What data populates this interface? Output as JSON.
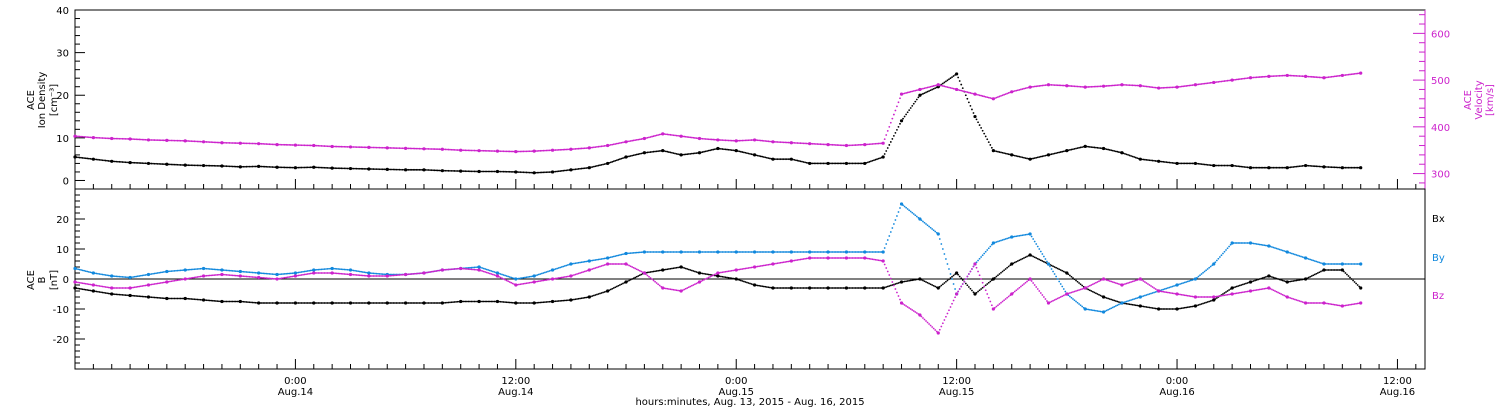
{
  "colors": {
    "black": "#000000",
    "magenta": "#cc22cc",
    "blue": "#1188dd"
  },
  "bottom_title": "hours:minutes, Aug. 13, 2015 - Aug. 16, 2015",
  "x_ticks": [
    {
      "hour": 12,
      "time": "0:00",
      "date": "Aug.14"
    },
    {
      "hour": 24,
      "time": "12:00",
      "date": "Aug.14"
    },
    {
      "hour": 36,
      "time": "0:00",
      "date": "Aug.15"
    },
    {
      "hour": 48,
      "time": "12:00",
      "date": "Aug.15"
    },
    {
      "hour": 60,
      "time": "0:00",
      "date": "Aug.16"
    },
    {
      "hour": 72,
      "time": "12:00",
      "date": "Aug.16"
    }
  ],
  "chart_data": [
    {
      "type": "scatter",
      "panel": "top",
      "ylabel_lines": [
        "ACE",
        "Ion Density",
        "[cm⁻³]"
      ],
      "ylim": [
        -2,
        40
      ],
      "y_ticks": [
        0,
        10,
        20,
        30,
        40
      ],
      "y2label_lines": [
        "ACE",
        "Velocity",
        "[km/s]"
      ],
      "y2lim": [
        267,
        650
      ],
      "y2_ticks": [
        300,
        400,
        500,
        600
      ],
      "xlim": [
        0,
        73.5
      ],
      "grid": false,
      "series": [
        {
          "color": "#000000",
          "x": [
            0,
            1,
            2,
            3,
            4,
            5,
            6,
            7,
            8,
            9,
            10,
            11,
            12,
            13,
            14,
            15,
            16,
            17,
            18,
            19,
            20,
            21,
            22,
            23,
            24,
            25,
            26,
            27,
            28,
            29,
            30,
            31,
            32,
            33,
            34,
            35,
            36,
            37,
            38,
            39,
            40,
            41,
            42,
            43,
            44,
            45,
            46,
            47,
            48,
            49,
            50,
            51,
            52,
            53,
            54,
            55,
            56,
            57,
            58,
            59,
            60,
            61,
            62,
            63,
            64,
            65,
            66,
            67,
            68,
            69,
            70
          ],
          "y": [
            5.5,
            5,
            4.5,
            4.2,
            4,
            3.8,
            3.6,
            3.5,
            3.4,
            3.2,
            3.3,
            3.1,
            3,
            3.1,
            2.9,
            2.8,
            2.7,
            2.6,
            2.5,
            2.5,
            2.3,
            2.2,
            2.1,
            2.1,
            2,
            1.8,
            2,
            2.5,
            3,
            4,
            5.5,
            6.5,
            7,
            6,
            6.5,
            7.5,
            7,
            6,
            5,
            5,
            4,
            4,
            4,
            4,
            5.5,
            14,
            20,
            22,
            25,
            15,
            7,
            6,
            5,
            6,
            7,
            8,
            7.5,
            6.5,
            5,
            4.5,
            4,
            4,
            3.5,
            3.5,
            3,
            3,
            3,
            3.5,
            3.2,
            3,
            3
          ]
        },
        {
          "color": "#cc22cc",
          "axis": "y2",
          "x": [
            0,
            1,
            2,
            3,
            4,
            5,
            6,
            7,
            8,
            9,
            10,
            11,
            12,
            13,
            14,
            15,
            16,
            17,
            18,
            19,
            20,
            21,
            22,
            23,
            24,
            25,
            26,
            27,
            28,
            29,
            30,
            31,
            32,
            33,
            34,
            35,
            36,
            37,
            38,
            39,
            40,
            41,
            42,
            43,
            44,
            45,
            46,
            47,
            48,
            49,
            50,
            51,
            52,
            53,
            54,
            55,
            56,
            57,
            58,
            59,
            60,
            61,
            62,
            63,
            64,
            65,
            66,
            67,
            68,
            69,
            70
          ],
          "y": [
            380,
            377,
            375,
            374,
            372,
            371,
            370,
            368,
            366,
            365,
            364,
            362,
            361,
            360,
            358,
            357,
            356,
            355,
            354,
            353,
            352,
            350,
            349,
            348,
            347,
            348,
            350,
            352,
            355,
            360,
            368,
            375,
            385,
            380,
            375,
            372,
            370,
            372,
            368,
            366,
            364,
            362,
            360,
            362,
            365,
            470,
            480,
            490,
            480,
            470,
            460,
            475,
            485,
            490,
            488,
            485,
            487,
            490,
            488,
            483,
            485,
            490,
            495,
            500,
            505,
            508,
            510,
            508,
            505,
            510,
            515
          ]
        }
      ]
    },
    {
      "type": "scatter",
      "panel": "bottom",
      "ylabel_lines": [
        "ACE",
        "B",
        "[nT]"
      ],
      "ylim": [
        -30,
        30
      ],
      "y_ticks": [
        -20,
        -10,
        0,
        10,
        20
      ],
      "xlim": [
        0,
        73.5
      ],
      "zero_line": true,
      "grid": false,
      "legend_position": "right",
      "series": [
        {
          "name": "Bx",
          "color": "#000000",
          "x": [
            0,
            1,
            2,
            3,
            4,
            5,
            6,
            7,
            8,
            9,
            10,
            11,
            12,
            13,
            14,
            15,
            16,
            17,
            18,
            19,
            20,
            21,
            22,
            23,
            24,
            25,
            26,
            27,
            28,
            29,
            30,
            31,
            32,
            33,
            34,
            35,
            36,
            37,
            38,
            39,
            40,
            41,
            42,
            43,
            44,
            45,
            46,
            47,
            48,
            49,
            50,
            51,
            52,
            53,
            54,
            55,
            56,
            57,
            58,
            59,
            60,
            61,
            62,
            63,
            64,
            65,
            66,
            67,
            68,
            69,
            70
          ],
          "y": [
            -3,
            -4,
            -5,
            -5.5,
            -6,
            -6.5,
            -6.5,
            -7,
            -7.5,
            -7.5,
            -8,
            -8,
            -8,
            -8,
            -8,
            -8,
            -8,
            -8,
            -8,
            -8,
            -8,
            -7.5,
            -7.5,
            -7.5,
            -8,
            -8,
            -7.5,
            -7,
            -6,
            -4,
            -1,
            2,
            3,
            4,
            2,
            1,
            0,
            -2,
            -3,
            -3,
            -3,
            -3,
            -3,
            -3,
            -3,
            -1,
            0,
            -3,
            2,
            -5,
            0,
            5,
            8,
            5,
            2,
            -3,
            -6,
            -8,
            -9,
            -10,
            -10,
            -9,
            -7,
            -3,
            -1,
            1,
            -1,
            0,
            3,
            3,
            -3
          ]
        },
        {
          "name": "By",
          "color": "#1188dd",
          "x": [
            0,
            1,
            2,
            3,
            4,
            5,
            6,
            7,
            8,
            9,
            10,
            11,
            12,
            13,
            14,
            15,
            16,
            17,
            18,
            19,
            20,
            21,
            22,
            23,
            24,
            25,
            26,
            27,
            28,
            29,
            30,
            31,
            32,
            33,
            34,
            35,
            36,
            37,
            38,
            39,
            40,
            41,
            42,
            43,
            44,
            45,
            46,
            47,
            48,
            49,
            50,
            51,
            52,
            53,
            54,
            55,
            56,
            57,
            58,
            59,
            60,
            61,
            62,
            63,
            64,
            65,
            66,
            67,
            68,
            69,
            70
          ],
          "y": [
            3.5,
            2,
            1,
            0.5,
            1.5,
            2.5,
            3,
            3.5,
            3,
            2.5,
            2,
            1.5,
            2,
            3,
            3.5,
            3,
            2,
            1.5,
            1.5,
            2,
            3,
            3.5,
            4,
            2,
            0,
            1,
            3,
            5,
            6,
            7,
            8.5,
            9,
            9,
            9,
            9,
            9,
            9,
            9,
            9,
            9,
            9,
            9,
            9,
            9,
            9,
            25,
            20,
            15,
            -5,
            5,
            12,
            14,
            15,
            5,
            -5,
            -10,
            -11,
            -8,
            -6,
            -4,
            -2,
            0,
            5,
            12,
            12,
            11,
            9,
            7,
            5,
            5,
            5
          ]
        },
        {
          "name": "Bz",
          "color": "#cc22cc",
          "x": [
            0,
            1,
            2,
            3,
            4,
            5,
            6,
            7,
            8,
            9,
            10,
            11,
            12,
            13,
            14,
            15,
            16,
            17,
            18,
            19,
            20,
            21,
            22,
            23,
            24,
            25,
            26,
            27,
            28,
            29,
            30,
            31,
            32,
            33,
            34,
            35,
            36,
            37,
            38,
            39,
            40,
            41,
            42,
            43,
            44,
            45,
            46,
            47,
            48,
            49,
            50,
            51,
            52,
            53,
            54,
            55,
            56,
            57,
            58,
            59,
            60,
            61,
            62,
            63,
            64,
            65,
            66,
            67,
            68,
            69,
            70
          ],
          "y": [
            -1,
            -2,
            -3,
            -3,
            -2,
            -1,
            0,
            1,
            1.5,
            1,
            0.5,
            0,
            1,
            2,
            2,
            1.5,
            1,
            1,
            1.5,
            2,
            3,
            3.5,
            3,
            1,
            -2,
            -1,
            0,
            1,
            3,
            5,
            5,
            2,
            -3,
            -4,
            -1,
            2,
            3,
            4,
            5,
            6,
            7,
            7,
            7,
            7,
            6,
            -8,
            -12,
            -18,
            -5,
            5,
            -10,
            -5,
            0,
            -8,
            -5,
            -3,
            0,
            -2,
            0,
            -4,
            -5,
            -6,
            -6,
            -5,
            -4,
            -3,
            -6,
            -8,
            -8,
            -9,
            -8
          ]
        }
      ]
    }
  ]
}
